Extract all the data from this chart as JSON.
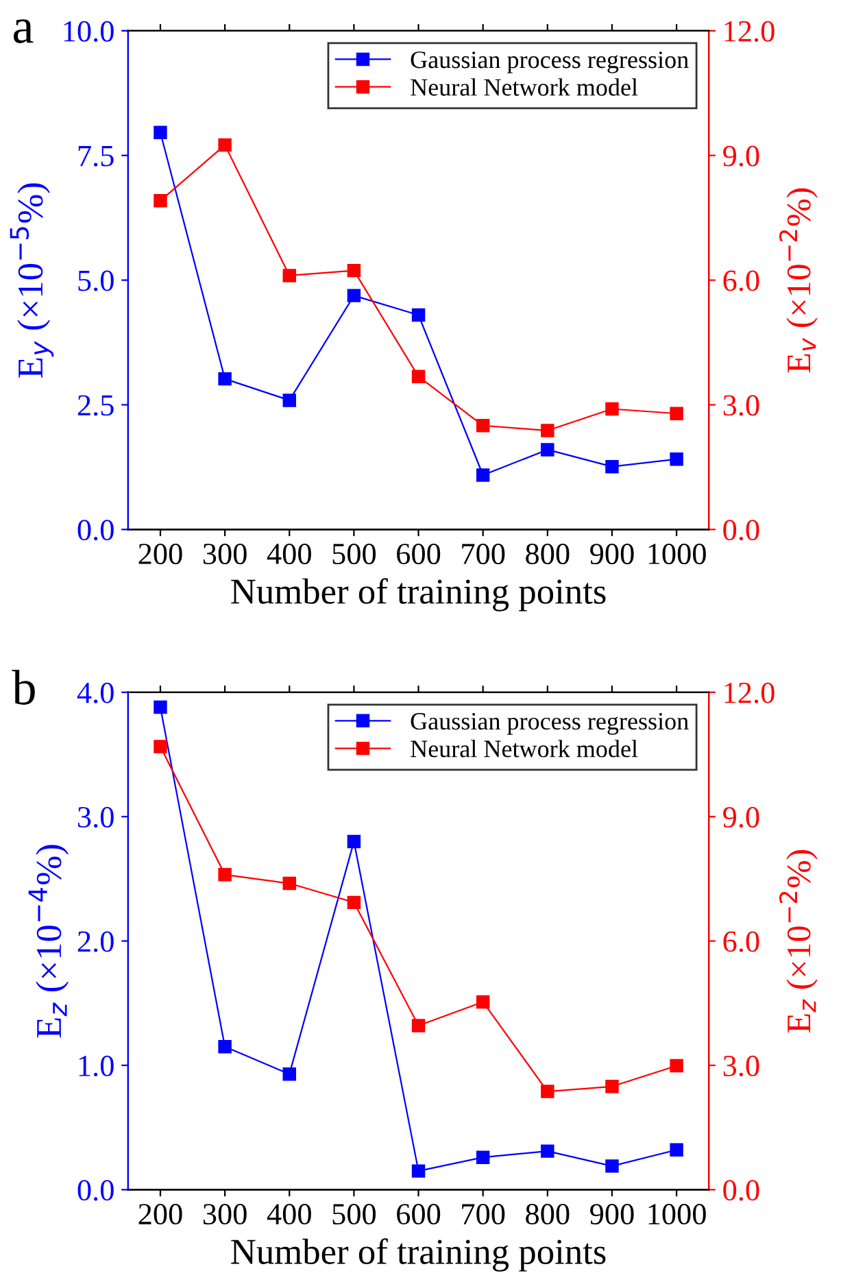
{
  "chart_data": [
    {
      "type": "line",
      "title": "a",
      "xlabel": "Number of training points",
      "ylabel": "E$_{y}$ (×10$^{−5}$%)",
      "y2label": "E$_{v}$ (×10$^{−2}$%)",
      "x": [
        200,
        300,
        400,
        500,
        600,
        700,
        800,
        900,
        1000
      ],
      "xlim": [
        150,
        1050
      ],
      "xticks": [
        200,
        300,
        400,
        500,
        600,
        700,
        800,
        900,
        1000
      ],
      "ylim": [
        0,
        10
      ],
      "yticks": [
        {
          "value": 0,
          "label": "0.0"
        },
        {
          "value": 2.5,
          "label": "2.5"
        },
        {
          "value": 5,
          "label": "5.0"
        },
        {
          "value": 7.5,
          "label": "7.5"
        },
        {
          "value": 10,
          "label": "10.0"
        }
      ],
      "y2lim": [
        0,
        12
      ],
      "y2ticks": [
        {
          "value": 0,
          "label": "0.0"
        },
        {
          "value": 3,
          "label": "3.0"
        },
        {
          "value": 6,
          "label": "6.0"
        },
        {
          "value": 9,
          "label": "9.0"
        },
        {
          "value": 12,
          "label": "12.0"
        }
      ],
      "marker": "square",
      "line_style": "solid",
      "grid": false,
      "legend": "top right",
      "series": [
        {
          "name": "Gaussian process regression",
          "color": "#0000ff",
          "values": [
            7.96,
            3.02,
            2.59,
            4.69,
            4.3,
            1.09,
            1.6,
            1.26,
            1.41
          ]
        },
        {
          "name": "Neural Network model",
          "color": "#ff0000",
          "axis": "y2",
          "values": [
            7.91,
            9.25,
            6.11,
            6.23,
            3.68,
            2.5,
            2.38,
            2.9,
            2.79
          ]
        }
      ]
    },
    {
      "type": "line",
      "title": "b",
      "xlabel": "Number of training points",
      "ylabel": "E$_{z}$ (×10$^{−4}$%)",
      "y2label": "E$_{z}$ (×10$^{−2}$%)",
      "x": [
        200,
        300,
        400,
        500,
        600,
        700,
        800,
        900,
        1000
      ],
      "xlim": [
        150,
        1050
      ],
      "xticks": [
        200,
        300,
        400,
        500,
        600,
        700,
        800,
        900,
        1000
      ],
      "ylim": [
        0,
        4
      ],
      "yticks": [
        {
          "value": 0,
          "label": "0.0"
        },
        {
          "value": 1,
          "label": "1.0"
        },
        {
          "value": 2,
          "label": "2.0"
        },
        {
          "value": 3,
          "label": "3.0"
        },
        {
          "value": 4,
          "label": "4.0"
        }
      ],
      "y2lim": [
        0,
        12
      ],
      "y2ticks": [
        {
          "value": 0,
          "label": "0.0"
        },
        {
          "value": 3,
          "label": "3.0"
        },
        {
          "value": 6,
          "label": "6.0"
        },
        {
          "value": 9,
          "label": "9.0"
        },
        {
          "value": 12,
          "label": "12.0"
        }
      ],
      "marker": "square",
      "line_style": "solid",
      "grid": false,
      "legend": "top right",
      "series": [
        {
          "name": "Gaussian process regression",
          "color": "#0000ff",
          "values": [
            3.88,
            1.15,
            0.93,
            2.8,
            0.15,
            0.26,
            0.31,
            0.19,
            0.32
          ]
        },
        {
          "name": "Neural Network model",
          "color": "#ff0000",
          "axis": "y2",
          "values": [
            10.69,
            7.6,
            7.39,
            6.93,
            3.96,
            4.53,
            2.37,
            2.49,
            2.99
          ]
        }
      ]
    }
  ]
}
